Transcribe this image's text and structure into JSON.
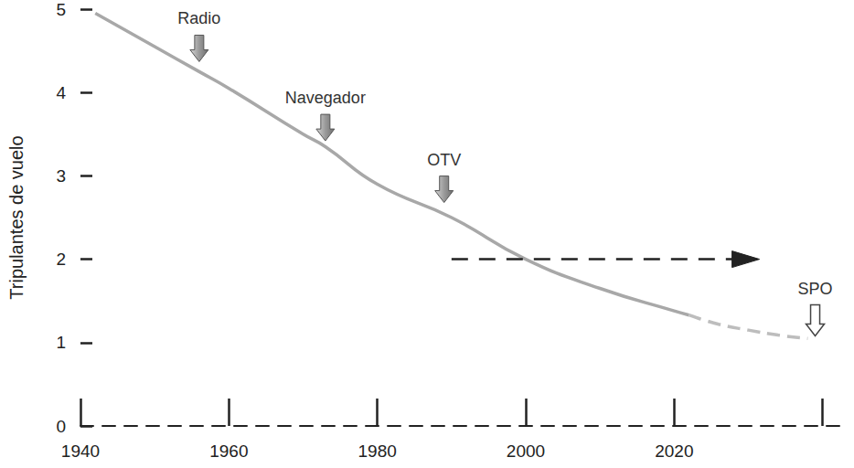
{
  "chart_data": {
    "type": "line",
    "y_label": "Tripulantes de vuelo",
    "xlim": [
      1940,
      2043
    ],
    "xticks": [
      1940,
      1960,
      1980,
      2000,
      2020,
      {
        "value": 2040,
        "label": null
      }
    ],
    "ylim": [
      0,
      5
    ],
    "yticks": [
      0,
      1,
      2,
      3,
      4,
      5
    ],
    "grid": false,
    "series": [
      {
        "x": [
          1942,
          1950,
          1956,
          1960,
          1970,
          1973,
          1980,
          1990,
          2000,
          2010,
          2020,
          2022
        ],
        "values": [
          4.95,
          4.55,
          4.25,
          4.05,
          3.5,
          3.35,
          2.9,
          2.5,
          2.0,
          1.65,
          1.38,
          1.33
        ],
        "color": "#a8a8a8",
        "line_style": "solid"
      },
      {
        "x": [
          2022,
          2026,
          2030,
          2034,
          2038
        ],
        "values": [
          1.33,
          1.22,
          1.15,
          1.09,
          1.05
        ],
        "color": "#bdbdbd",
        "line_style": "dashed"
      },
      {
        "x": [
          1990,
          2031
        ],
        "values": [
          2,
          2
        ],
        "color": "#222222",
        "line_style": "dashed",
        "marker": "arrow"
      }
    ],
    "annotations": [
      {
        "text": "Radio",
        "x": 1956,
        "y": 4.37,
        "marker": "filled_arrow"
      },
      {
        "text": "Navegador",
        "x": 1973,
        "y": 3.42,
        "marker": "filled_arrow"
      },
      {
        "text": "OTV",
        "x": 1989,
        "y": 2.68,
        "marker": "filled_arrow"
      },
      {
        "text": "SPO",
        "x": 2039,
        "y": 1.08,
        "marker": "hollow_arrow"
      }
    ]
  }
}
